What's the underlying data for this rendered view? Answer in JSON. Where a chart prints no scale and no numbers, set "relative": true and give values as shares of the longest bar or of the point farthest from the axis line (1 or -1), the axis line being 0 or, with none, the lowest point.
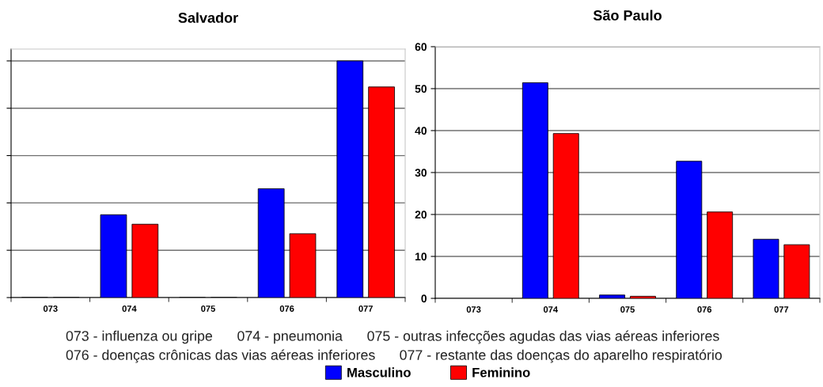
{
  "chart_data": [
    {
      "type": "bar",
      "title": "Salvador",
      "categories": [
        "073",
        "074",
        "075",
        "076",
        "077"
      ],
      "relative": true,
      "grid": "y",
      "legend": "bottom",
      "series": [
        {
          "name": "Masculino",
          "color": "#0000ff",
          "values": [
            0,
            0.35,
            0,
            0.46,
            1
          ]
        },
        {
          "name": "Feminino",
          "color": "#ff0000",
          "values": [
            0,
            0.31,
            0,
            0.27,
            0.89
          ]
        }
      ],
      "annotations": [
        "073 - influenza ou gripe",
        "074 - pneumonia",
        "075 - outras infecções agudas das vias aéreas inferiores",
        "076 - doenças crônicas das vias aéreas inferiores",
        "077 - restante das doenças do aparelho respiratório"
      ]
    },
    {
      "type": "bar",
      "title": "São Paulo",
      "categories": [
        "073",
        "074",
        "075",
        "076",
        "077"
      ],
      "ylim": [
        0,
        60
      ],
      "yticks": [
        0,
        10,
        20,
        30,
        40,
        50,
        60
      ],
      "grid": "y",
      "series": [
        {
          "color": "#0000ff",
          "values": [
            null,
            51.4,
            0.8,
            32.7,
            14.1
          ]
        },
        {
          "color": "#ff0000",
          "values": [
            null,
            39.3,
            0.5,
            20.6,
            12.8
          ]
        }
      ]
    }
  ]
}
